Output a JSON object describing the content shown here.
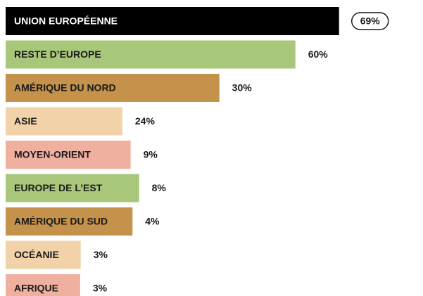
{
  "chart_data": {
    "type": "bar",
    "orientation": "horizontal",
    "categories": [
      "UNION EUROPÉENNE",
      "RESTE D’EUROPE",
      "AMÉRIQUE DU NORD",
      "ASIE",
      "MOYEN-ORIENT",
      "EUROPE DE L’EST",
      "AMÉRIQUE DU SUD",
      "OCÉANIE",
      "AFRIQUE"
    ],
    "values": [
      69,
      60,
      30,
      24,
      9,
      8,
      4,
      3,
      3
    ],
    "value_labels": [
      "69%",
      "60%",
      "30%",
      "24%",
      "9%",
      "8%",
      "4%",
      "3%",
      "3%"
    ],
    "colors": [
      "#000000",
      "#a9c77a",
      "#c4924a",
      "#f2d3a9",
      "#efb0a0",
      "#a9c77a",
      "#c4924a",
      "#f2d3a9",
      "#efb0a0"
    ]
  }
}
